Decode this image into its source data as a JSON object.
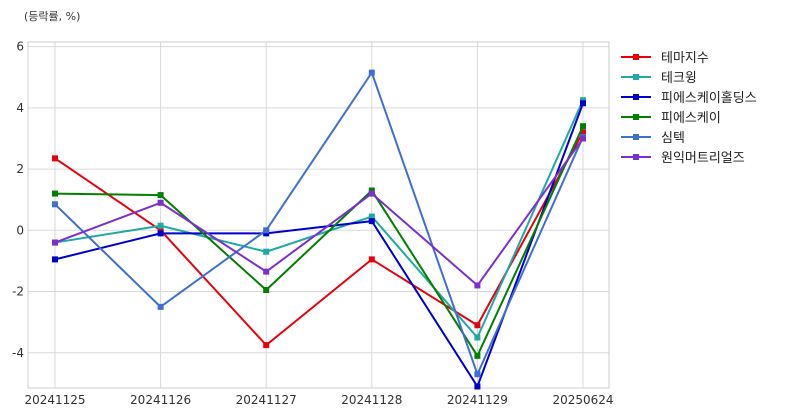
{
  "chart_data": {
    "type": "line",
    "unit_label": "(등락률, %)",
    "categories": [
      "20241125",
      "20241126",
      "20241127",
      "20241128",
      "20241129",
      "20250624"
    ],
    "ylim": [
      -5.15,
      6.15
    ],
    "yticks": [
      -4,
      -2,
      0,
      2,
      4,
      6
    ],
    "grid": true,
    "legend_position": "right",
    "series": [
      {
        "name": "테마지수",
        "color": "#e8000b",
        "values": [
          2.35,
          0.0,
          -3.75,
          -0.95,
          -3.1,
          3.2
        ]
      },
      {
        "name": "테크윙",
        "color": "#1fa9a4",
        "values": [
          -0.4,
          0.15,
          -0.7,
          0.45,
          -3.5,
          4.25
        ]
      },
      {
        "name": "피에스케이홀딩스",
        "color": "#0000cc",
        "values": [
          -0.95,
          -0.1,
          -0.1,
          0.3,
          -5.1,
          4.15
        ]
      },
      {
        "name": "피에스케이",
        "color": "#007f00",
        "values": [
          1.2,
          1.15,
          -1.95,
          1.3,
          -4.1,
          3.4
        ]
      },
      {
        "name": "심텍",
        "color": "#3f6fd0",
        "values": [
          0.85,
          -2.5,
          0.0,
          5.15,
          -4.7,
          3.05
        ]
      },
      {
        "name": "원익머트리얼즈",
        "color": "#7b2fcf",
        "values": [
          -0.4,
          0.9,
          -1.35,
          1.2,
          -1.8,
          3.0
        ]
      }
    ]
  }
}
